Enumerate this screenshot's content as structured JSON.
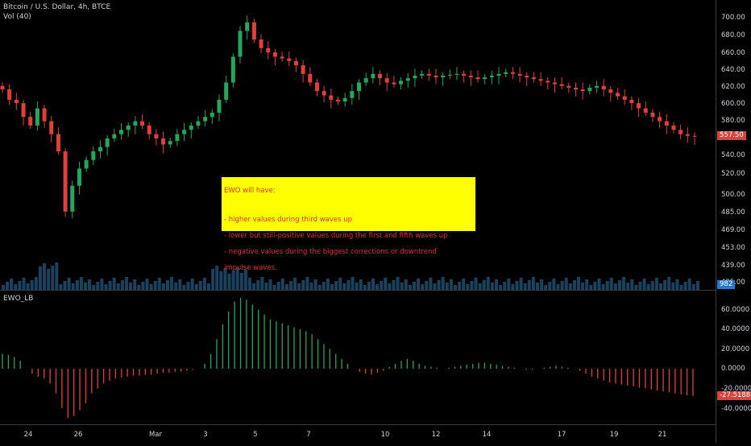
{
  "header": {
    "symbol": "Bitcoin / U.S. Dollar, 4h, BTCE",
    "volume_label": "Vol (40)"
  },
  "indicator": {
    "name": "EWO_LB"
  },
  "annotation": {
    "title": "EWO will have:",
    "lines": [
      " - higher values during third waves up",
      " - lower but still-positive values during the first and fifth waves up",
      " - negative values during the biggest corrections or downtrend",
      "   impulse waves."
    ]
  },
  "price_axis": {
    "ticks": [
      "700.00",
      "680.00",
      "660.00",
      "640.00",
      "620.00",
      "600.00",
      "580.00",
      "557.50",
      "540.00",
      "520.00",
      "500.00",
      "485.00",
      "469.00",
      "453.00",
      "439.00",
      "425.00"
    ],
    "last_price": "557.50",
    "volume_value": "982"
  },
  "ewo_axis": {
    "ticks": [
      "60.0000",
      "40.0000",
      "20.0000",
      "0.0000",
      "-20.0000",
      "-40.0000"
    ],
    "last_value": "-27.5188"
  },
  "time_axis": [
    "24",
    "26",
    "Mar",
    "3",
    "5",
    "7",
    "10",
    "12",
    "14",
    "17",
    "19",
    "21"
  ],
  "colors": {
    "up": "#26a65b",
    "down": "#e0403a",
    "volume": "#1e4d6e",
    "annotation_bg": "#ffff00",
    "annotation_text": "#e03030",
    "price_badge": "#e0403a",
    "volume_badge": "#2979c8"
  },
  "chart_data": {
    "type": "candlestick",
    "title": "Bitcoin / U.S. Dollar, 4h, BTCE",
    "price_close_path": [
      612,
      600,
      596,
      580,
      570,
      590,
      575,
      560,
      540,
      470,
      500,
      520,
      530,
      540,
      545,
      555,
      560,
      565,
      570,
      575,
      570,
      560,
      555,
      548,
      552,
      560,
      565,
      570,
      575,
      580,
      585,
      600,
      620,
      650,
      680,
      690,
      670,
      660,
      655,
      650,
      648,
      645,
      640,
      630,
      620,
      610,
      605,
      600,
      598,
      602,
      610,
      620,
      625,
      630,
      625,
      620,
      618,
      622,
      625,
      628,
      630,
      628,
      626,
      628,
      629,
      630,
      628,
      626,
      624,
      626,
      628,
      630,
      632,
      630,
      628,
      626,
      624,
      622,
      620,
      618,
      616,
      614,
      612,
      610,
      614,
      616,
      612,
      608,
      604,
      600,
      596,
      590,
      585,
      580,
      575,
      570,
      565,
      560,
      558,
      557.5
    ],
    "ewo_values": [
      15,
      14,
      12,
      8,
      0,
      -5,
      -8,
      -10,
      -15,
      -25,
      -40,
      -50,
      -48,
      -42,
      -35,
      -25,
      -20,
      -15,
      -12,
      -10,
      -9,
      -8,
      -7,
      -7,
      -6,
      -6,
      -5,
      -4,
      -4,
      -3,
      -3,
      -2,
      -1,
      0,
      5,
      15,
      30,
      45,
      58,
      68,
      72,
      70,
      65,
      60,
      55,
      50,
      48,
      46,
      44,
      42,
      40,
      38,
      35,
      30,
      25,
      20,
      15,
      10,
      5,
      0,
      -3,
      -5,
      -6,
      -4,
      -2,
      2,
      5,
      8,
      10,
      8,
      5,
      3,
      2,
      1,
      0,
      1,
      2,
      3,
      4,
      5,
      6,
      6,
      5,
      4,
      3,
      2,
      1,
      0,
      -1,
      -1,
      0,
      1,
      2,
      3,
      2,
      1,
      0,
      -2,
      -5,
      -8,
      -10,
      -12,
      -14,
      -15,
      -16,
      -17,
      -18,
      -19,
      -20,
      -21,
      -22,
      -23,
      -24,
      -25,
      -26,
      -27,
      -27.5188
    ],
    "ewo_ylim": [
      -45,
      75
    ]
  }
}
